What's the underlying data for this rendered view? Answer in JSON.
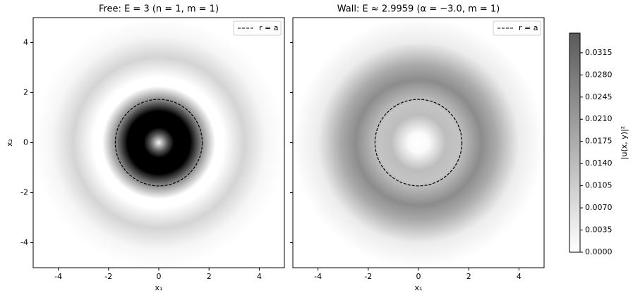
{
  "chart_data": [
    {
      "type": "heatmap",
      "title": "Free: E = 3 (n = 1, m = 1)",
      "xlabel": "x₁",
      "ylabel": "x₂",
      "xlim": [
        -5,
        5
      ],
      "ylim": [
        -5,
        5
      ],
      "xticks": [
        -4,
        -2,
        0,
        2,
        4
      ],
      "yticks": [
        -4,
        -2,
        0,
        2,
        4
      ],
      "ytick_labels": true,
      "circle_radius": 1.73,
      "legend": {
        "label": "r = a",
        "corner": "upper right"
      }
    },
    {
      "type": "heatmap",
      "title": "Wall: E ≈ 2.9959 (α = −3.0, m = 1)",
      "xlabel": "x₁",
      "xlim": [
        -5,
        5
      ],
      "ylim": [
        -5,
        5
      ],
      "xticks": [
        -4,
        -2,
        0,
        2,
        4
      ],
      "yticks": [
        -4,
        -2,
        0,
        2,
        4
      ],
      "ytick_labels": false,
      "circle_radius": 1.73,
      "legend": {
        "label": "r = a",
        "corner": "upper right"
      }
    },
    {
      "type": "colorbar",
      "label": "|u(x, y)|²",
      "lim": [
        0,
        0.0346
      ],
      "ticks": [
        {
          "value": 0,
          "label": "0.0000"
        },
        {
          "value": 0.0035,
          "label": "0.0035"
        },
        {
          "value": 0.007,
          "label": "0.0070"
        },
        {
          "value": 0.0105,
          "label": "0.0105"
        },
        {
          "value": 0.014,
          "label": "0.0140"
        },
        {
          "value": 0.0175,
          "label": "0.0175"
        },
        {
          "value": 0.021,
          "label": "0.0210"
        },
        {
          "value": 0.0245,
          "label": "0.0245"
        },
        {
          "value": 0.028,
          "label": "0.0280"
        },
        {
          "value": 0.0315,
          "label": "0.0315"
        }
      ]
    }
  ]
}
